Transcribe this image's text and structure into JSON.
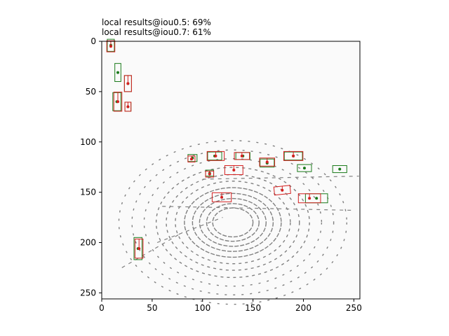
{
  "title_lines": [
    "local results@iou0.5: 69%",
    "local results@iou0.7: 61%"
  ],
  "chart_data": {
    "type": "scatter",
    "description_of_marks": "top-down LiDAR bird's-eye-view occupancy image with ground-truth (green) and predicted (red) oriented boxes and center dots",
    "xlim": [
      0,
      256
    ],
    "ylim": [
      256,
      0
    ],
    "x_ticks": [
      0,
      50,
      100,
      150,
      200,
      250
    ],
    "y_ticks": [
      0,
      50,
      100,
      150,
      200,
      250
    ],
    "grid": false,
    "colors": {
      "ground_truth": "#1a7a1a",
      "prediction": "#d42020",
      "points": "#808080",
      "background": "#fafafa"
    },
    "ground_truth_boxes": [
      {
        "cx": 16,
        "cy": 31,
        "w": 6,
        "h": 18
      },
      {
        "cx": 26,
        "cy": 42,
        "w": 7,
        "h": 16
      },
      {
        "cx": 15,
        "cy": 60,
        "w": 8,
        "h": 18
      },
      {
        "cx": 26,
        "cy": 65,
        "w": 6,
        "h": 9
      },
      {
        "cx": 9,
        "cy": 4,
        "w": 7,
        "h": 12
      },
      {
        "cx": 90,
        "cy": 116,
        "w": 9,
        "h": 7
      },
      {
        "cx": 112,
        "cy": 114,
        "w": 14,
        "h": 8
      },
      {
        "cx": 140,
        "cy": 114,
        "w": 14,
        "h": 7
      },
      {
        "cx": 164,
        "cy": 121,
        "w": 14,
        "h": 8
      },
      {
        "cx": 190,
        "cy": 114,
        "w": 18,
        "h": 8
      },
      {
        "cx": 201,
        "cy": 126,
        "w": 14,
        "h": 7
      },
      {
        "cx": 236,
        "cy": 127,
        "w": 14,
        "h": 7
      },
      {
        "cx": 107,
        "cy": 131,
        "w": 8,
        "h": 6
      },
      {
        "cx": 213,
        "cy": 156,
        "w": 22,
        "h": 9
      },
      {
        "cx": 36,
        "cy": 206,
        "w": 8,
        "h": 22
      }
    ],
    "prediction_boxes": [
      {
        "cx": 9,
        "cy": 5,
        "w": 8,
        "h": 11,
        "angle": 0
      },
      {
        "cx": 26,
        "cy": 42,
        "w": 7,
        "h": 16,
        "angle": 0
      },
      {
        "cx": 16,
        "cy": 60,
        "w": 8,
        "h": 19,
        "angle": 0
      },
      {
        "cx": 26,
        "cy": 65,
        "w": 6,
        "h": 9,
        "angle": 0
      },
      {
        "cx": 89,
        "cy": 117,
        "w": 7,
        "h": 6,
        "angle": 0
      },
      {
        "cx": 113,
        "cy": 114,
        "w": 17,
        "h": 9,
        "angle": 0
      },
      {
        "cx": 139,
        "cy": 114,
        "w": 15,
        "h": 7,
        "angle": 0
      },
      {
        "cx": 164,
        "cy": 120,
        "w": 15,
        "h": 8,
        "angle": 0
      },
      {
        "cx": 190,
        "cy": 114,
        "w": 19,
        "h": 9,
        "angle": 0
      },
      {
        "cx": 131,
        "cy": 128,
        "w": 18,
        "h": 9,
        "angle": 0
      },
      {
        "cx": 107,
        "cy": 132,
        "w": 8,
        "h": 6,
        "angle": 0
      },
      {
        "cx": 179,
        "cy": 148,
        "w": 16,
        "h": 8,
        "angle": -6
      },
      {
        "cx": 119,
        "cy": 155,
        "w": 19,
        "h": 9,
        "angle": 0
      },
      {
        "cx": 206,
        "cy": 156,
        "w": 22,
        "h": 9,
        "angle": 0
      },
      {
        "cx": 37,
        "cy": 206,
        "w": 8,
        "h": 19,
        "angle": 0
      }
    ],
    "point_cloud": {
      "rings_center": [
        130,
        180
      ],
      "ring_radii": [
        20,
        26,
        33,
        40,
        48,
        57,
        66,
        76,
        88,
        100,
        113
      ]
    }
  }
}
